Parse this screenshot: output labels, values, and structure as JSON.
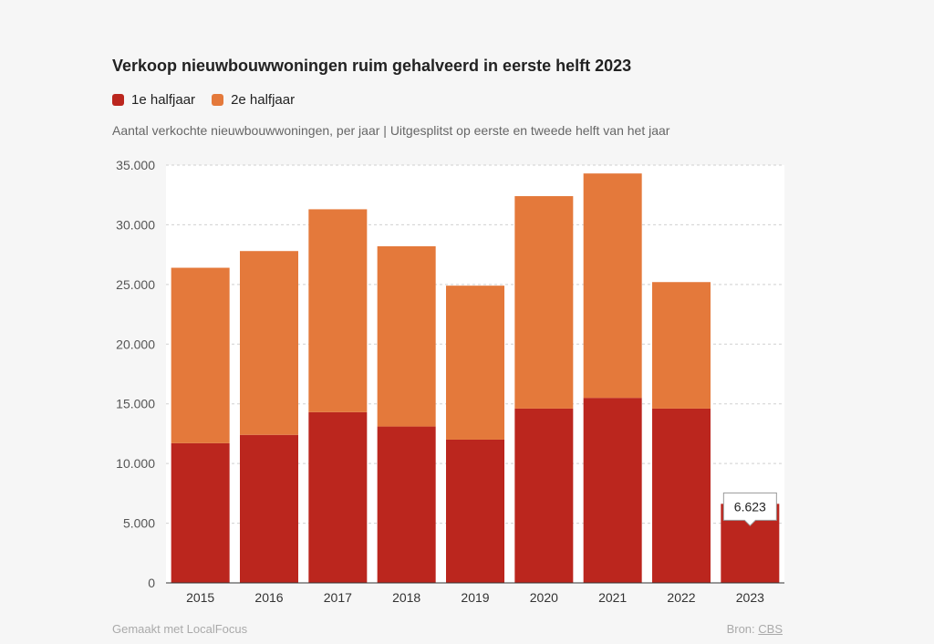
{
  "chart_data": {
    "type": "bar",
    "stacked": true,
    "title": "Verkoop nieuwbouwwoningen ruim gehalveerd in eerste helft 2023",
    "subtitle": "Aantal verkochte nieuwbouwwoningen, per jaar | Uitgesplitst op eerste en tweede helft van het jaar",
    "categories": [
      "2015",
      "2016",
      "2017",
      "2018",
      "2019",
      "2020",
      "2021",
      "2022",
      "2023"
    ],
    "series": [
      {
        "name": "1e halfjaar",
        "color": "#bb261e",
        "values": [
          11700,
          12400,
          14300,
          13100,
          12000,
          14600,
          15500,
          14600,
          6623
        ]
      },
      {
        "name": "2e halfjaar",
        "color": "#e4793b",
        "values": [
          14700,
          15400,
          17000,
          15100,
          12900,
          17800,
          18800,
          10600,
          null
        ]
      }
    ],
    "ylim": [
      0,
      35000
    ],
    "yticks": [
      "0",
      "5.000",
      "10.000",
      "15.000",
      "20.000",
      "25.000",
      "30.000",
      "35.000"
    ],
    "ytick_values": [
      0,
      5000,
      10000,
      15000,
      20000,
      25000,
      30000,
      35000
    ],
    "grid": true,
    "annotation": {
      "category": "2023",
      "label": "6.623"
    }
  },
  "footer": {
    "made_with": "Gemaakt met LocalFocus",
    "source_prefix": "Bron:",
    "source_link": "CBS"
  }
}
